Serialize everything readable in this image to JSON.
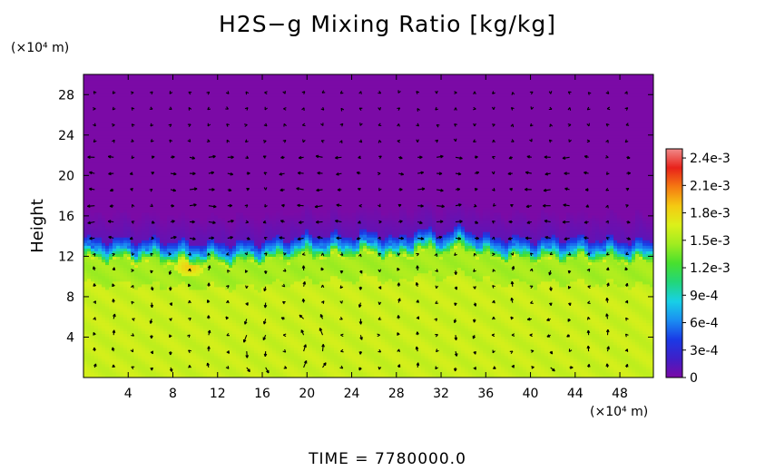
{
  "chart_data": {
    "type": "heatmap",
    "title": "H2S−g Mixing Ratio [kg/kg]",
    "xlabel": "",
    "ylabel": "Height",
    "x_unit": "(×10⁴ m)",
    "y_unit": "(×10⁴ m)",
    "xlim": [
      0,
      51
    ],
    "ylim": [
      0,
      30
    ],
    "x_ticks": [
      "4",
      "8",
      "12",
      "16",
      "20",
      "24",
      "28",
      "32",
      "36",
      "40",
      "44",
      "48"
    ],
    "x_tick_values": [
      4,
      8,
      12,
      16,
      20,
      24,
      28,
      32,
      36,
      40,
      44,
      48
    ],
    "y_ticks": [
      "4",
      "8",
      "12",
      "16",
      "20",
      "24",
      "28"
    ],
    "y_tick_values": [
      4,
      8,
      12,
      16,
      20,
      24,
      28
    ],
    "colorbar": {
      "labels": [
        "2.4e-3",
        "2.1e-3",
        "1.8e-3",
        "1.5e-3",
        "1.2e-3",
        "9e-4",
        "6e-4",
        "3e-4",
        "0"
      ],
      "label_values": [
        0.0024,
        0.0021,
        0.0018,
        0.0015,
        0.0012,
        0.0009,
        0.0006,
        0.0003,
        0
      ],
      "max": 0.0025,
      "colors": [
        "#7b0aa6",
        "#3f1fc8",
        "#1a3ae6",
        "#1a8ef2",
        "#18d0e6",
        "#22d67a",
        "#48e02e",
        "#a0ec20",
        "#dcf01a",
        "#f5ca12",
        "#f57a12",
        "#e8221a",
        "#f08a8a"
      ]
    },
    "fields": {
      "upper_layer_value": 0,
      "lower_layer_value": 0.0016,
      "interface_height": 12.5,
      "interface_profile_x": [
        0,
        4,
        8,
        12,
        16,
        20,
        24,
        26,
        28,
        30,
        32,
        34,
        36,
        40,
        44,
        48,
        51
      ],
      "interface_profile_y": [
        12.8,
        12.8,
        12.6,
        12.4,
        12.6,
        13.2,
        13.2,
        13.5,
        12.8,
        13.8,
        13.4,
        14.0,
        13.0,
        12.8,
        12.9,
        12.7,
        12.6
      ],
      "hotspot": {
        "x": 9.5,
        "y": 11,
        "value": 0.0019
      }
    },
    "vector_field": {
      "description_free": true,
      "vortex_centers": [
        {
          "x": 18,
          "y": 3
        },
        {
          "x": 41,
          "y": 3
        }
      ]
    },
    "annotation": "TIME  =  7780000.0"
  }
}
